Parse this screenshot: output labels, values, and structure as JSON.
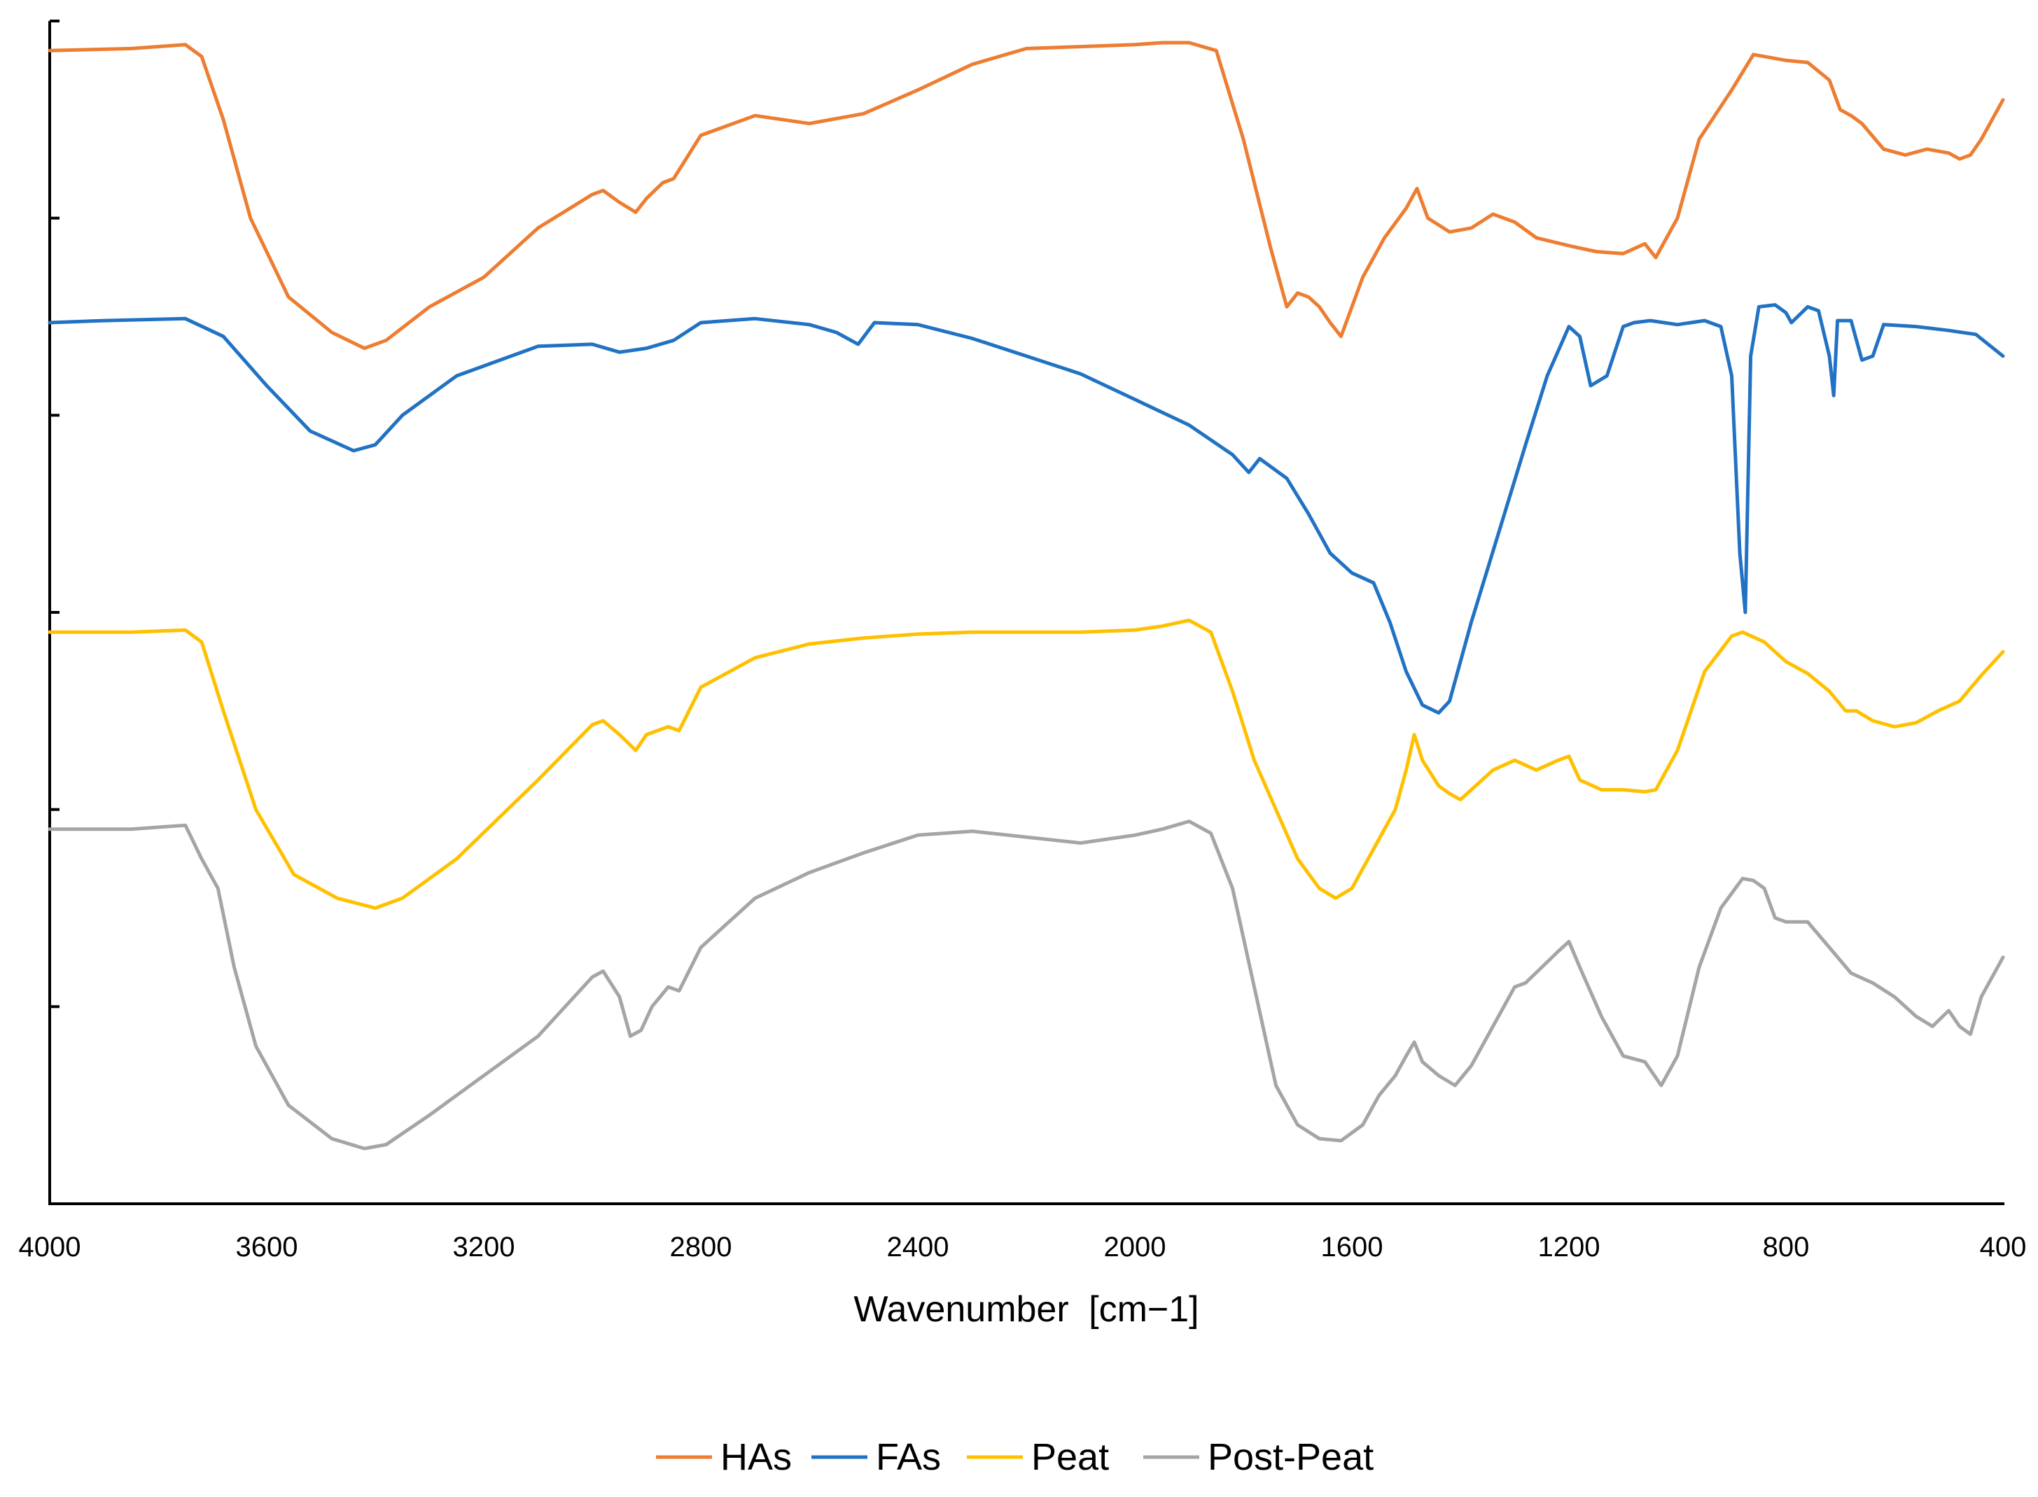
{
  "chart_data": {
    "type": "line",
    "title": "",
    "xlabel": "Wavenumber",
    "xlabel_unit": "[cm−1]",
    "ylabel": "",
    "xlim": [
      4000,
      400
    ],
    "x_reversed": true,
    "ylim": [
      0,
      6
    ],
    "y_ticks_labeled": false,
    "grid": false,
    "legend_position": "bottom",
    "x_ticks": [
      "4000",
      "3600",
      "3200",
      "2800",
      "2400",
      "2000",
      "1600",
      "1200",
      "800",
      "400"
    ],
    "series": [
      {
        "name": "HAs",
        "color": "#ED7D31",
        "points": [
          [
            4000,
            5.85
          ],
          [
            3850,
            5.86
          ],
          [
            3750,
            5.88
          ],
          [
            3720,
            5.82
          ],
          [
            3680,
            5.5
          ],
          [
            3630,
            5.0
          ],
          [
            3560,
            4.6
          ],
          [
            3480,
            4.42
          ],
          [
            3420,
            4.34
          ],
          [
            3380,
            4.38
          ],
          [
            3300,
            4.55
          ],
          [
            3200,
            4.7
          ],
          [
            3100,
            4.95
          ],
          [
            3000,
            5.12
          ],
          [
            2980,
            5.14
          ],
          [
            2950,
            5.08
          ],
          [
            2920,
            5.03
          ],
          [
            2900,
            5.1
          ],
          [
            2870,
            5.18
          ],
          [
            2850,
            5.2
          ],
          [
            2800,
            5.42
          ],
          [
            2700,
            5.52
          ],
          [
            2600,
            5.48
          ],
          [
            2500,
            5.53
          ],
          [
            2400,
            5.65
          ],
          [
            2300,
            5.78
          ],
          [
            2200,
            5.86
          ],
          [
            2100,
            5.87
          ],
          [
            2000,
            5.88
          ],
          [
            1950,
            5.89
          ],
          [
            1900,
            5.89
          ],
          [
            1850,
            5.85
          ],
          [
            1800,
            5.4
          ],
          [
            1750,
            4.85
          ],
          [
            1720,
            4.55
          ],
          [
            1700,
            4.62
          ],
          [
            1680,
            4.6
          ],
          [
            1660,
            4.55
          ],
          [
            1640,
            4.47
          ],
          [
            1620,
            4.4
          ],
          [
            1580,
            4.7
          ],
          [
            1540,
            4.9
          ],
          [
            1500,
            5.05
          ],
          [
            1480,
            5.15
          ],
          [
            1460,
            5.0
          ],
          [
            1420,
            4.93
          ],
          [
            1380,
            4.95
          ],
          [
            1340,
            5.02
          ],
          [
            1300,
            4.98
          ],
          [
            1260,
            4.9
          ],
          [
            1200,
            4.86
          ],
          [
            1150,
            4.83
          ],
          [
            1100,
            4.82
          ],
          [
            1060,
            4.87
          ],
          [
            1040,
            4.8
          ],
          [
            1000,
            5.0
          ],
          [
            960,
            5.4
          ],
          [
            900,
            5.65
          ],
          [
            860,
            5.83
          ],
          [
            800,
            5.8
          ],
          [
            760,
            5.79
          ],
          [
            720,
            5.7
          ],
          [
            700,
            5.55
          ],
          [
            680,
            5.52
          ],
          [
            660,
            5.48
          ],
          [
            620,
            5.35
          ],
          [
            580,
            5.32
          ],
          [
            540,
            5.35
          ],
          [
            500,
            5.33
          ],
          [
            480,
            5.3
          ],
          [
            460,
            5.32
          ],
          [
            440,
            5.4
          ],
          [
            420,
            5.5
          ],
          [
            400,
            5.6
          ]
        ]
      },
      {
        "name": "FAs",
        "color": "#2272C3",
        "points": [
          [
            4000,
            4.47
          ],
          [
            3900,
            4.48
          ],
          [
            3750,
            4.49
          ],
          [
            3680,
            4.4
          ],
          [
            3600,
            4.15
          ],
          [
            3520,
            3.92
          ],
          [
            3440,
            3.82
          ],
          [
            3400,
            3.85
          ],
          [
            3350,
            4.0
          ],
          [
            3250,
            4.2
          ],
          [
            3100,
            4.35
          ],
          [
            3000,
            4.36
          ],
          [
            2950,
            4.32
          ],
          [
            2900,
            4.34
          ],
          [
            2850,
            4.38
          ],
          [
            2800,
            4.47
          ],
          [
            2700,
            4.49
          ],
          [
            2600,
            4.46
          ],
          [
            2550,
            4.42
          ],
          [
            2510,
            4.36
          ],
          [
            2480,
            4.47
          ],
          [
            2400,
            4.46
          ],
          [
            2300,
            4.39
          ],
          [
            2200,
            4.3
          ],
          [
            2100,
            4.21
          ],
          [
            2000,
            4.08
          ],
          [
            1900,
            3.95
          ],
          [
            1820,
            3.8
          ],
          [
            1790,
            3.71
          ],
          [
            1770,
            3.78
          ],
          [
            1720,
            3.68
          ],
          [
            1680,
            3.5
          ],
          [
            1640,
            3.3
          ],
          [
            1600,
            3.2
          ],
          [
            1560,
            3.15
          ],
          [
            1530,
            2.95
          ],
          [
            1500,
            2.7
          ],
          [
            1470,
            2.53
          ],
          [
            1440,
            2.49
          ],
          [
            1420,
            2.55
          ],
          [
            1380,
            2.95
          ],
          [
            1330,
            3.4
          ],
          [
            1280,
            3.85
          ],
          [
            1240,
            4.2
          ],
          [
            1200,
            4.45
          ],
          [
            1180,
            4.4
          ],
          [
            1160,
            4.15
          ],
          [
            1130,
            4.2
          ],
          [
            1100,
            4.45
          ],
          [
            1080,
            4.47
          ],
          [
            1050,
            4.48
          ],
          [
            1000,
            4.46
          ],
          [
            950,
            4.48
          ],
          [
            920,
            4.45
          ],
          [
            900,
            4.2
          ],
          [
            885,
            3.3
          ],
          [
            875,
            3.0
          ],
          [
            865,
            4.3
          ],
          [
            850,
            4.55
          ],
          [
            820,
            4.56
          ],
          [
            800,
            4.52
          ],
          [
            790,
            4.47
          ],
          [
            760,
            4.55
          ],
          [
            740,
            4.53
          ],
          [
            720,
            4.3
          ],
          [
            712,
            4.1
          ],
          [
            705,
            4.48
          ],
          [
            680,
            4.48
          ],
          [
            660,
            4.28
          ],
          [
            640,
            4.3
          ],
          [
            620,
            4.46
          ],
          [
            560,
            4.45
          ],
          [
            500,
            4.43
          ],
          [
            450,
            4.41
          ],
          [
            400,
            4.3
          ]
        ]
      },
      {
        "name": "Peat",
        "color": "#FFC000",
        "points": [
          [
            4000,
            2.9
          ],
          [
            3850,
            2.9
          ],
          [
            3750,
            2.91
          ],
          [
            3720,
            2.85
          ],
          [
            3680,
            2.5
          ],
          [
            3620,
            2.0
          ],
          [
            3550,
            1.67
          ],
          [
            3470,
            1.55
          ],
          [
            3400,
            1.5
          ],
          [
            3350,
            1.55
          ],
          [
            3250,
            1.75
          ],
          [
            3100,
            2.15
          ],
          [
            3000,
            2.43
          ],
          [
            2980,
            2.45
          ],
          [
            2950,
            2.38
          ],
          [
            2920,
            2.3
          ],
          [
            2900,
            2.38
          ],
          [
            2860,
            2.42
          ],
          [
            2840,
            2.4
          ],
          [
            2800,
            2.62
          ],
          [
            2700,
            2.77
          ],
          [
            2600,
            2.84
          ],
          [
            2500,
            2.87
          ],
          [
            2400,
            2.89
          ],
          [
            2300,
            2.9
          ],
          [
            2200,
            2.9
          ],
          [
            2100,
            2.9
          ],
          [
            2000,
            2.91
          ],
          [
            1950,
            2.93
          ],
          [
            1900,
            2.96
          ],
          [
            1860,
            2.9
          ],
          [
            1820,
            2.6
          ],
          [
            1780,
            2.25
          ],
          [
            1740,
            2.0
          ],
          [
            1700,
            1.75
          ],
          [
            1660,
            1.6
          ],
          [
            1630,
            1.55
          ],
          [
            1600,
            1.6
          ],
          [
            1560,
            1.8
          ],
          [
            1520,
            2.0
          ],
          [
            1500,
            2.2
          ],
          [
            1485,
            2.38
          ],
          [
            1470,
            2.25
          ],
          [
            1440,
            2.12
          ],
          [
            1420,
            2.08
          ],
          [
            1400,
            2.05
          ],
          [
            1380,
            2.1
          ],
          [
            1340,
            2.2
          ],
          [
            1300,
            2.25
          ],
          [
            1260,
            2.2
          ],
          [
            1220,
            2.25
          ],
          [
            1200,
            2.27
          ],
          [
            1180,
            2.15
          ],
          [
            1140,
            2.1
          ],
          [
            1100,
            2.1
          ],
          [
            1060,
            2.09
          ],
          [
            1040,
            2.1
          ],
          [
            1000,
            2.3
          ],
          [
            950,
            2.7
          ],
          [
            900,
            2.88
          ],
          [
            880,
            2.9
          ],
          [
            840,
            2.85
          ],
          [
            800,
            2.75
          ],
          [
            760,
            2.69
          ],
          [
            720,
            2.6
          ],
          [
            690,
            2.5
          ],
          [
            670,
            2.5
          ],
          [
            640,
            2.45
          ],
          [
            600,
            2.42
          ],
          [
            560,
            2.44
          ],
          [
            520,
            2.5
          ],
          [
            480,
            2.55
          ],
          [
            440,
            2.68
          ],
          [
            400,
            2.8
          ]
        ]
      },
      {
        "name": "Post-Peat",
        "color": "#A5A5A5",
        "points": [
          [
            4000,
            1.9
          ],
          [
            3850,
            1.9
          ],
          [
            3750,
            1.92
          ],
          [
            3720,
            1.75
          ],
          [
            3690,
            1.6
          ],
          [
            3660,
            1.2
          ],
          [
            3620,
            0.8
          ],
          [
            3560,
            0.5
          ],
          [
            3480,
            0.33
          ],
          [
            3420,
            0.28
          ],
          [
            3380,
            0.3
          ],
          [
            3300,
            0.45
          ],
          [
            3200,
            0.65
          ],
          [
            3100,
            0.85
          ],
          [
            3000,
            1.15
          ],
          [
            2980,
            1.18
          ],
          [
            2950,
            1.05
          ],
          [
            2930,
            0.85
          ],
          [
            2910,
            0.88
          ],
          [
            2890,
            1.0
          ],
          [
            2860,
            1.1
          ],
          [
            2840,
            1.08
          ],
          [
            2800,
            1.3
          ],
          [
            2700,
            1.55
          ],
          [
            2600,
            1.68
          ],
          [
            2500,
            1.78
          ],
          [
            2400,
            1.87
          ],
          [
            2300,
            1.89
          ],
          [
            2200,
            1.86
          ],
          [
            2100,
            1.83
          ],
          [
            2000,
            1.87
          ],
          [
            1950,
            1.9
          ],
          [
            1900,
            1.94
          ],
          [
            1860,
            1.88
          ],
          [
            1820,
            1.6
          ],
          [
            1780,
            1.1
          ],
          [
            1740,
            0.6
          ],
          [
            1700,
            0.4
          ],
          [
            1660,
            0.33
          ],
          [
            1620,
            0.32
          ],
          [
            1580,
            0.4
          ],
          [
            1550,
            0.55
          ],
          [
            1520,
            0.65
          ],
          [
            1500,
            0.75
          ],
          [
            1485,
            0.82
          ],
          [
            1470,
            0.72
          ],
          [
            1440,
            0.65
          ],
          [
            1410,
            0.6
          ],
          [
            1380,
            0.7
          ],
          [
            1340,
            0.9
          ],
          [
            1300,
            1.1
          ],
          [
            1280,
            1.12
          ],
          [
            1250,
            1.2
          ],
          [
            1220,
            1.28
          ],
          [
            1200,
            1.33
          ],
          [
            1180,
            1.2
          ],
          [
            1140,
            0.95
          ],
          [
            1100,
            0.75
          ],
          [
            1060,
            0.72
          ],
          [
            1030,
            0.6
          ],
          [
            1000,
            0.75
          ],
          [
            960,
            1.2
          ],
          [
            920,
            1.5
          ],
          [
            880,
            1.65
          ],
          [
            860,
            1.64
          ],
          [
            840,
            1.6
          ],
          [
            820,
            1.45
          ],
          [
            800,
            1.43
          ],
          [
            760,
            1.43
          ],
          [
            720,
            1.3
          ],
          [
            680,
            1.17
          ],
          [
            640,
            1.12
          ],
          [
            600,
            1.05
          ],
          [
            560,
            0.95
          ],
          [
            530,
            0.9
          ],
          [
            500,
            0.98
          ],
          [
            480,
            0.9
          ],
          [
            460,
            0.86
          ],
          [
            440,
            1.05
          ],
          [
            420,
            1.15
          ],
          [
            400,
            1.25
          ]
        ]
      }
    ]
  }
}
